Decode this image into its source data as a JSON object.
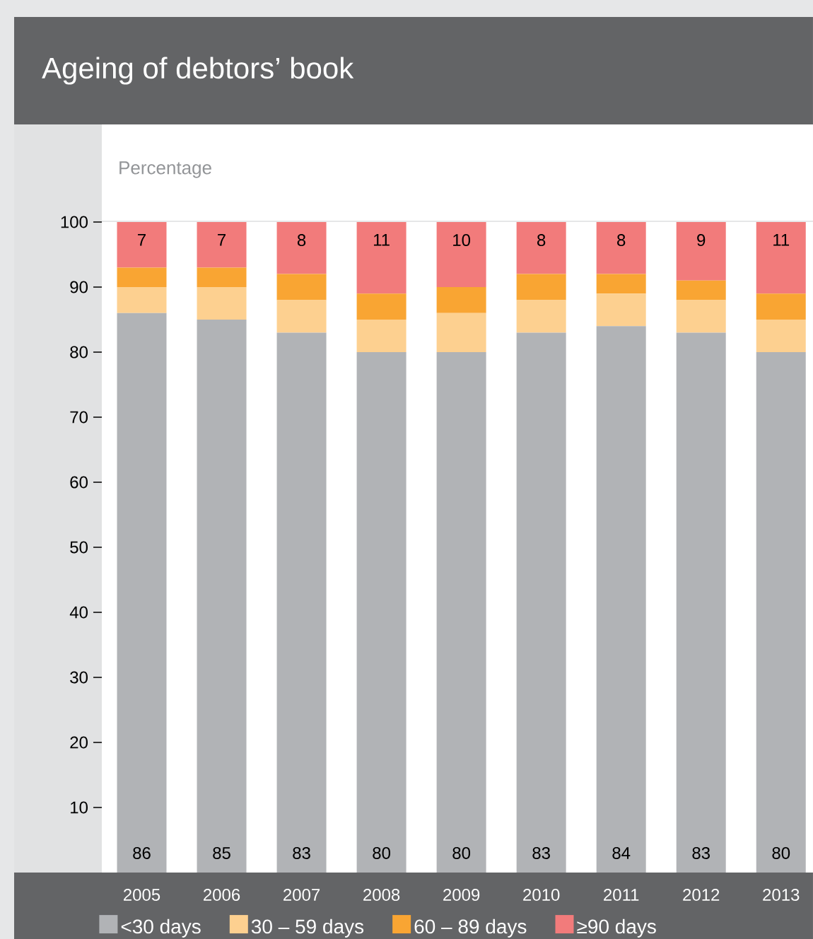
{
  "chart_data": {
    "type": "bar",
    "stacked": true,
    "title": "Ageing of debtors’ book",
    "ylabel": "Percentage",
    "categories": [
      "2005",
      "2006",
      "2007",
      "2008",
      "2009",
      "2010",
      "2011",
      "2012",
      "2013"
    ],
    "series": [
      {
        "name": "<30 days",
        "color": "#b1b3b6",
        "values": [
          86,
          85,
          83,
          80,
          80,
          83,
          84,
          83,
          80
        ],
        "value_labels": [
          "86",
          "85",
          "83",
          "80",
          "80",
          "83",
          "84",
          "83",
          "80"
        ]
      },
      {
        "name": "30 – 59 days",
        "color": "#fdd090",
        "values": [
          4,
          5,
          5,
          5,
          6,
          5,
          5,
          5,
          5
        ]
      },
      {
        "name": "60 – 89 days",
        "color": "#f9a533",
        "values": [
          3,
          3,
          4,
          4,
          4,
          4,
          3,
          3,
          4
        ]
      },
      {
        "name": "≥90 days",
        "color": "#f27b7b",
        "values": [
          7,
          7,
          8,
          11,
          10,
          8,
          8,
          9,
          11
        ],
        "value_labels": [
          "7",
          "7",
          "8",
          "11",
          "10",
          "8",
          "8",
          "9",
          "11"
        ]
      }
    ],
    "ylim": [
      0,
      100
    ],
    "yticks": [
      10,
      20,
      30,
      40,
      50,
      60,
      70,
      80,
      90,
      100
    ],
    "grid": false,
    "legend": "bottom"
  }
}
